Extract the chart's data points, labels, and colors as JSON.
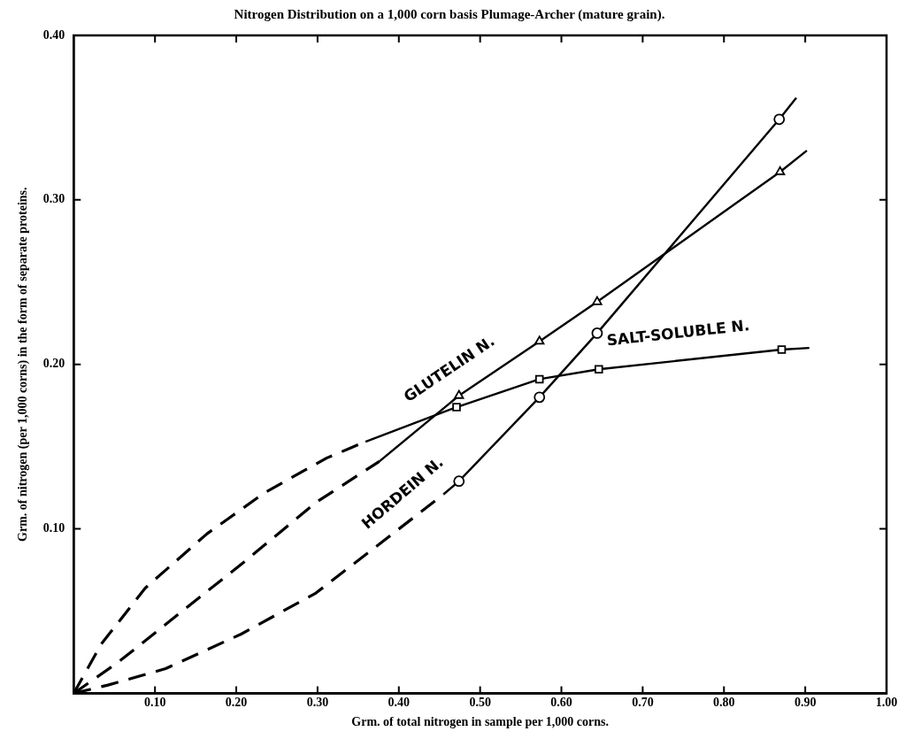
{
  "chart_data": {
    "type": "line",
    "title": "Nitrogen Distribution on a 1,000 corn basis Plumage-Archer (mature grain).",
    "xlabel": "Grm. of total nitrogen in sample per 1,000 corns.",
    "ylabel": "Grm. of nitrogen (per 1,000 corns) in the form of separate proteins.",
    "xlim": [
      0,
      1.0
    ],
    "ylim": [
      0,
      0.4
    ],
    "xticks": [
      {
        "value": 0.1,
        "label": "0.10"
      },
      {
        "value": 0.2,
        "label": "0.20"
      },
      {
        "value": 0.3,
        "label": "0.30"
      },
      {
        "value": 0.4,
        "label": "0.40"
      },
      {
        "value": 0.5,
        "label": "0.50"
      },
      {
        "value": 0.6,
        "label": "0.60"
      },
      {
        "value": 0.7,
        "label": "0.70"
      },
      {
        "value": 0.8,
        "label": "0.80"
      },
      {
        "value": 0.9,
        "label": "0.90"
      },
      {
        "value": 1.0,
        "label": "1.00"
      }
    ],
    "yticks": [
      {
        "value": 0.1,
        "label": "0.10"
      },
      {
        "value": 0.2,
        "label": "0.20"
      },
      {
        "value": 0.3,
        "label": "0.30"
      },
      {
        "value": 0.4,
        "label": "0.40"
      }
    ],
    "grid": false,
    "legend": false,
    "series": [
      {
        "line_style": "dashed",
        "marker": "none",
        "color": "#000000",
        "x": [
          0,
          0.034,
          0.088,
          0.164,
          0.235,
          0.311,
          0.359
        ],
        "values": [
          0,
          0.03,
          0.064,
          0.097,
          0.122,
          0.143,
          0.153
        ]
      },
      {
        "name": "SALT-SOLUBLE N.",
        "line_style": "solid",
        "marker": "none",
        "color": "#000000",
        "x": [
          0.359,
          0.471,
          0.573,
          0.646,
          0.871,
          0.905
        ],
        "values": [
          0.153,
          0.174,
          0.191,
          0.197,
          0.209,
          0.21
        ]
      },
      {
        "type": "scatter",
        "marker": "square",
        "color": "#000000",
        "x": [
          0.471,
          0.573,
          0.646,
          0.871
        ],
        "values": [
          0.174,
          0.191,
          0.197,
          0.209
        ]
      },
      {
        "line_style": "dashed",
        "marker": "none",
        "color": "#000000",
        "x": [
          0,
          0.055,
          0.126,
          0.21,
          0.298,
          0.376
        ],
        "values": [
          0,
          0.019,
          0.047,
          0.08,
          0.116,
          0.141
        ]
      },
      {
        "name": "GLUTELIN N.",
        "line_style": "solid",
        "marker": "none",
        "color": "#000000",
        "x": [
          0.376,
          0.474,
          0.573,
          0.644,
          0.869,
          0.902
        ],
        "values": [
          0.141,
          0.181,
          0.214,
          0.238,
          0.317,
          0.33
        ]
      },
      {
        "type": "scatter",
        "marker": "triangle",
        "color": "#000000",
        "x": [
          0.474,
          0.573,
          0.644,
          0.869
        ],
        "values": [
          0.181,
          0.214,
          0.238,
          0.317
        ]
      },
      {
        "line_style": "dashed",
        "marker": "none",
        "color": "#000000",
        "x": [
          0,
          0.042,
          0.113,
          0.206,
          0.298,
          0.382,
          0.455
        ],
        "values": [
          0,
          0.005,
          0.015,
          0.036,
          0.061,
          0.093,
          0.121
        ]
      },
      {
        "name": "HORDEIN N.",
        "line_style": "solid",
        "marker": "none",
        "color": "#000000",
        "x": [
          0.455,
          0.474,
          0.573,
          0.644,
          0.868,
          0.889
        ],
        "values": [
          0.121,
          0.129,
          0.18,
          0.219,
          0.349,
          0.362
        ]
      },
      {
        "type": "scatter",
        "marker": "circle",
        "color": "#000000",
        "x": [
          0.474,
          0.573,
          0.644,
          0.868
        ],
        "values": [
          0.129,
          0.18,
          0.219,
          0.349
        ]
      }
    ]
  }
}
